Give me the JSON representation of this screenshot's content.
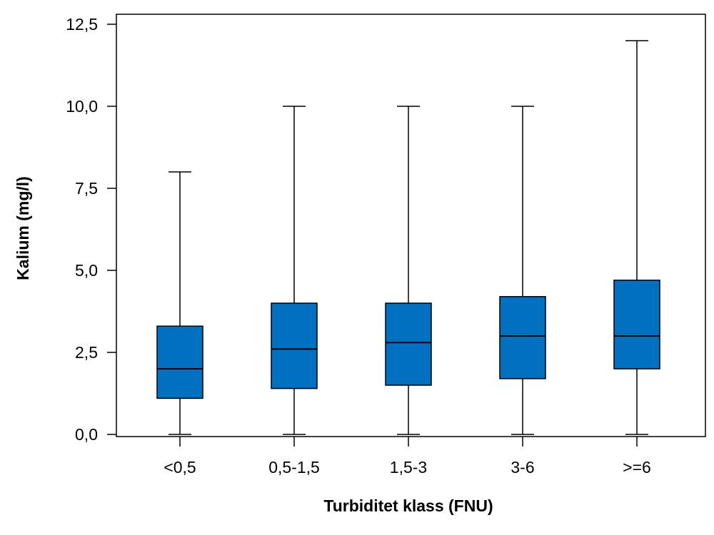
{
  "chart_data": {
    "type": "boxplot",
    "title": "",
    "xlabel": "Turbiditet klass (FNU)",
    "ylabel": "Kalium (mg/l)",
    "ylim": [
      0,
      12.5
    ],
    "y_ticks": [
      0,
      2.5,
      5,
      7.5,
      10,
      12.5
    ],
    "y_tick_labels": [
      "0,0",
      "2,5",
      "5,0",
      "7,5",
      "10,0",
      "12,5"
    ],
    "categories": [
      "<0,5",
      "0,5-1,5",
      "1,5-3",
      "3-6",
      ">=6"
    ],
    "boxes": [
      {
        "category": "<0,5",
        "whisker_low": 0,
        "q1": 1.1,
        "median": 2.0,
        "q3": 3.3,
        "whisker_high": 8.0
      },
      {
        "category": "0,5-1,5",
        "whisker_low": 0,
        "q1": 1.4,
        "median": 2.6,
        "q3": 4.0,
        "whisker_high": 10.0
      },
      {
        "category": "1,5-3",
        "whisker_low": 0,
        "q1": 1.5,
        "median": 2.8,
        "q3": 4.0,
        "whisker_high": 10.0
      },
      {
        "category": "3-6",
        "whisker_low": 0,
        "q1": 1.7,
        "median": 3.0,
        "q3": 4.2,
        "whisker_high": 10.0
      },
      {
        "category": ">=6",
        "whisker_low": 0,
        "q1": 2.0,
        "median": 3.0,
        "q3": 4.7,
        "whisker_high": 12.0
      }
    ],
    "box_color": "#0070C0",
    "grid": false,
    "legend": "none"
  }
}
